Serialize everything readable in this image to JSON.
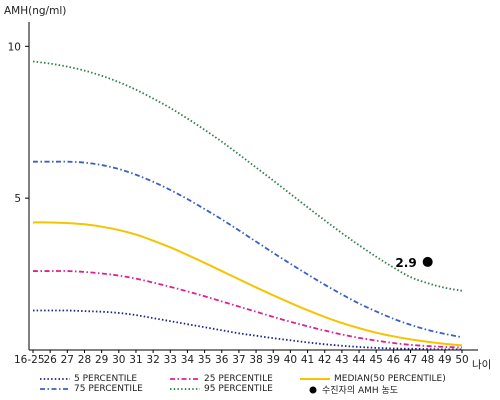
{
  "chart_data": {
    "type": "line",
    "ylabel": "AMH(ng/ml)",
    "xlabel": "나이",
    "ylim": [
      0,
      10.8
    ],
    "y_ticks": [
      5,
      10
    ],
    "categories": [
      "16-25",
      "26",
      "27",
      "28",
      "29",
      "30",
      "31",
      "32",
      "33",
      "34",
      "35",
      "36",
      "37",
      "38",
      "39",
      "40",
      "41",
      "42",
      "43",
      "44",
      "45",
      "46",
      "47",
      "48",
      "49",
      "50"
    ],
    "grid": false,
    "legend_position": "bottom",
    "series": [
      {
        "name": "5 PERCENTILE",
        "color": "#1b1f8a",
        "style": "dotted",
        "values": [
          1.3,
          1.3,
          1.3,
          1.28,
          1.26,
          1.22,
          1.15,
          1.05,
          0.95,
          0.85,
          0.75,
          0.65,
          0.55,
          0.47,
          0.39,
          0.32,
          0.25,
          0.19,
          0.14,
          0.1,
          0.07,
          0.05,
          0.04,
          0.03,
          0.02,
          0.02
        ]
      },
      {
        "name": "25 PERCENTILE",
        "color": "#e0208c",
        "style": "dashdot",
        "values": [
          2.6,
          2.6,
          2.6,
          2.57,
          2.52,
          2.45,
          2.35,
          2.22,
          2.08,
          1.93,
          1.77,
          1.6,
          1.43,
          1.26,
          1.09,
          0.93,
          0.78,
          0.64,
          0.51,
          0.4,
          0.31,
          0.23,
          0.17,
          0.13,
          0.1,
          0.08
        ]
      },
      {
        "name": "MEDIAN(50 PERCENTILE)",
        "color": "#f5c400",
        "style": "solid",
        "values": [
          4.2,
          4.2,
          4.18,
          4.14,
          4.06,
          3.95,
          3.8,
          3.6,
          3.38,
          3.13,
          2.87,
          2.6,
          2.33,
          2.06,
          1.8,
          1.55,
          1.31,
          1.09,
          0.89,
          0.72,
          0.57,
          0.45,
          0.35,
          0.27,
          0.2,
          0.15
        ]
      },
      {
        "name": "75 PERCENTILE",
        "color": "#3a5fc8",
        "style": "dashdot",
        "values": [
          6.2,
          6.2,
          6.2,
          6.17,
          6.09,
          5.96,
          5.77,
          5.54,
          5.27,
          4.97,
          4.64,
          4.3,
          3.94,
          3.57,
          3.2,
          2.84,
          2.49,
          2.15,
          1.83,
          1.53,
          1.27,
          1.03,
          0.83,
          0.66,
          0.53,
          0.42
        ]
      },
      {
        "name": "95 PERCENTILE",
        "color": "#2e7d4a",
        "style": "dotted",
        "values": [
          9.5,
          9.43,
          9.33,
          9.2,
          9.03,
          8.82,
          8.57,
          8.28,
          7.97,
          7.62,
          7.25,
          6.86,
          6.44,
          6.01,
          5.58,
          5.14,
          4.7,
          4.27,
          3.85,
          3.45,
          3.07,
          2.72,
          2.4,
          2.2,
          2.05,
          1.95
        ]
      }
    ],
    "patient_point": {
      "name": "수진자의 AMH 농도",
      "x": "48",
      "y": 2.9,
      "label": "2.9",
      "color": "#000000"
    }
  }
}
